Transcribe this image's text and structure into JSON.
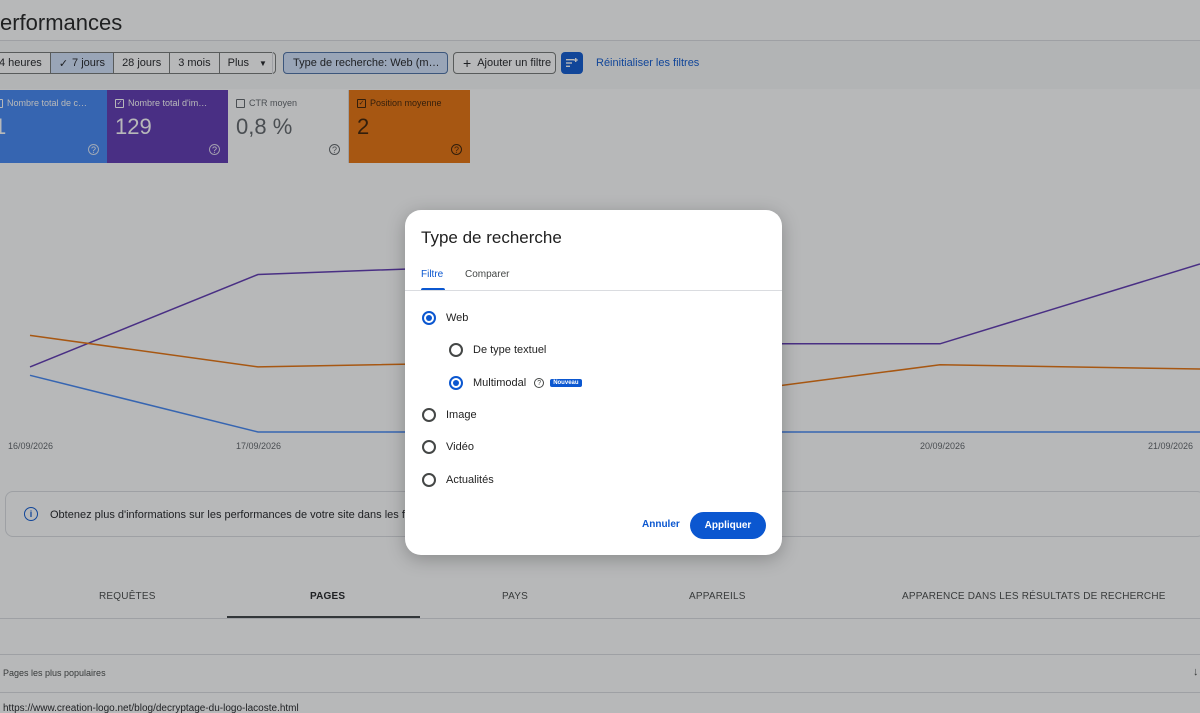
{
  "page": {
    "title": "erformances"
  },
  "date_range": {
    "options": [
      "4 heures",
      "7 jours",
      "28 jours",
      "3 mois",
      "Plus"
    ],
    "selected": "7 jours"
  },
  "filters": {
    "search_type_chip": "Type de recherche: Web (m…",
    "add_filter": "Ajouter un filtre",
    "reset": "Réinitialiser les filtres"
  },
  "metrics": [
    {
      "label": "Nombre total de c…",
      "value": "1",
      "checked": true,
      "color": "#4285f4"
    },
    {
      "label": "Nombre total d'im…",
      "value": "129",
      "checked": true,
      "color": "#5e35b1"
    },
    {
      "label": "CTR moyen",
      "value": "0,8 %",
      "checked": false,
      "color": "#ffffff"
    },
    {
      "label": "Position moyenne",
      "value": "2",
      "checked": true,
      "color": "#e8710a"
    }
  ],
  "chart": {
    "x_labels": [
      "16/09/2026",
      "17/09/2026",
      "20/09/2026",
      "21/09/2026"
    ]
  },
  "chart_data": {
    "type": "line",
    "x": [
      "16/09/2026",
      "17/09/2026",
      "18/09/2026",
      "19/09/2026",
      "20/09/2026",
      "21/09/2026"
    ],
    "series": [
      {
        "color": "#5e35b1",
        "values": [
          0.31,
          0.75,
          0.79,
          0.42,
          0.42,
          0.8
        ]
      },
      {
        "color": "#e8710a",
        "values": [
          0.46,
          0.31,
          0.33,
          0.18,
          0.32,
          0.3
        ]
      },
      {
        "color": "#4285f4",
        "values": [
          0.27,
          0.0,
          0.0,
          0.0,
          0.0,
          0.0
        ]
      }
    ]
  },
  "info_banner": {
    "text": "Obtenez plus d'informations sur les performances de votre site dans les fonctionnal"
  },
  "bottom_tabs": [
    "REQUÊTES",
    "PAGES",
    "PAYS",
    "APPAREILS",
    "APPARENCE DANS LES RÉSULTATS DE RECHERCHE"
  ],
  "active_bottom_tab": "PAGES",
  "table": {
    "column_label": "Pages les plus populaires",
    "first_row_url": "https://www.creation-logo.net/blog/decryptage-du-logo-lacoste.html"
  },
  "dialog": {
    "title": "Type de recherche",
    "tabs": [
      "Filtre",
      "Comparer"
    ],
    "active_tab": "Filtre",
    "options": [
      {
        "label": "Web",
        "selected": true,
        "level": 0
      },
      {
        "label": "De type textuel",
        "selected": false,
        "level": 1
      },
      {
        "label": "Multimodal",
        "selected": true,
        "level": 1,
        "badge": "Nouveau"
      },
      {
        "label": "Image",
        "selected": false,
        "level": 0
      },
      {
        "label": "Vidéo",
        "selected": false,
        "level": 0
      },
      {
        "label": "Actualités",
        "selected": false,
        "level": 0
      }
    ],
    "cancel": "Annuler",
    "apply": "Appliquer"
  }
}
